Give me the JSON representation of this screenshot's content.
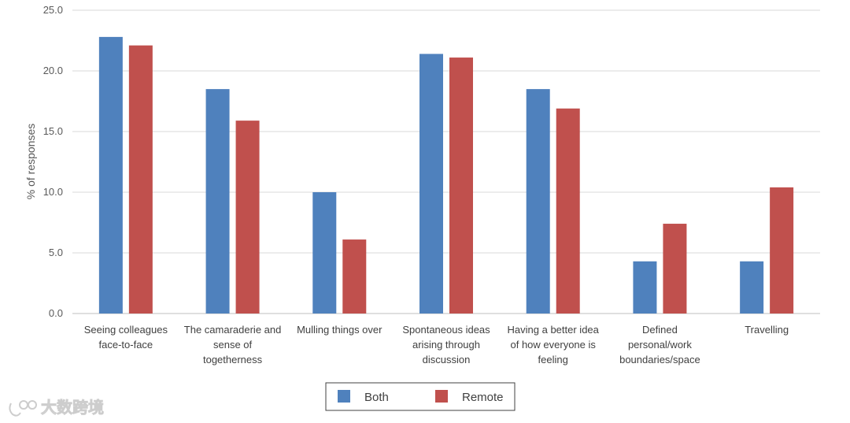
{
  "chart_data": {
    "type": "bar",
    "title": "",
    "xlabel": "",
    "ylabel": "% of responses",
    "ylim": [
      0,
      25
    ],
    "yticks": [
      "0.0",
      "5.0",
      "10.0",
      "15.0",
      "20.0",
      "25.0"
    ],
    "grid": true,
    "legend_position": "bottom-center",
    "categories": [
      [
        "Seeing colleagues",
        "face-to-face"
      ],
      [
        "The camaraderie and",
        "sense of",
        "togetherness"
      ],
      [
        "Mulling things over"
      ],
      [
        "Spontaneous ideas",
        "arising through",
        "discussion"
      ],
      [
        "Having a better idea",
        "of how everyone is",
        "feeling"
      ],
      [
        "Defined",
        "personal/work",
        "boundaries/space"
      ],
      [
        "Travelling"
      ]
    ],
    "series": [
      {
        "name": "Both",
        "color": "#4f81bd",
        "values": [
          22.8,
          18.5,
          10.0,
          21.4,
          18.5,
          4.3,
          4.3
        ]
      },
      {
        "name": "Remote",
        "color": "#c0504d",
        "values": [
          22.1,
          15.9,
          6.1,
          21.1,
          16.9,
          7.4,
          10.4
        ]
      }
    ]
  },
  "watermark": {
    "text": "大数跨境"
  }
}
